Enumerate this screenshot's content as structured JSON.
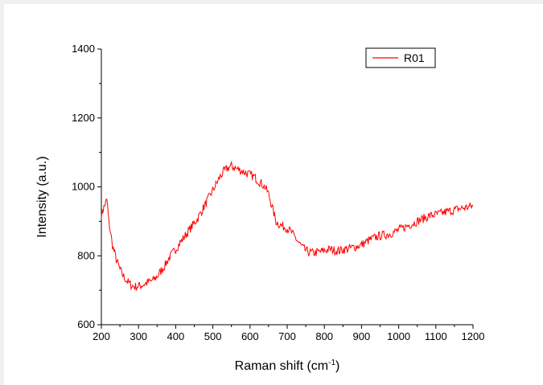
{
  "chart_data": {
    "type": "line",
    "xlabel": "Raman shift (cm",
    "xlabel_sup": "-1",
    "xlabel_close": ")",
    "ylabel": "Intensity (a.u.)",
    "xlim": [
      200,
      1200
    ],
    "ylim": [
      600,
      1400
    ],
    "x_ticks": [
      200,
      300,
      400,
      500,
      600,
      700,
      800,
      900,
      1000,
      1100,
      1200
    ],
    "y_ticks": [
      600,
      800,
      1000,
      1200,
      1400
    ],
    "grid": false,
    "legend_position": "top-right",
    "series": [
      {
        "name": "R01",
        "color": "#ff0000",
        "x": [
          200,
          205,
          210,
          215,
          220,
          230,
          240,
          250,
          260,
          270,
          280,
          290,
          300,
          310,
          320,
          330,
          340,
          350,
          360,
          370,
          380,
          390,
          400,
          410,
          420,
          430,
          440,
          450,
          460,
          470,
          480,
          490,
          500,
          510,
          520,
          530,
          540,
          550,
          560,
          570,
          580,
          590,
          600,
          610,
          620,
          630,
          640,
          650,
          660,
          670,
          680,
          690,
          700,
          710,
          720,
          730,
          740,
          750,
          760,
          770,
          780,
          790,
          800,
          810,
          820,
          830,
          840,
          850,
          860,
          870,
          880,
          890,
          900,
          910,
          920,
          930,
          940,
          950,
          960,
          970,
          980,
          990,
          1000,
          1010,
          1020,
          1030,
          1040,
          1050,
          1060,
          1070,
          1080,
          1090,
          1100,
          1110,
          1120,
          1130,
          1140,
          1150,
          1160,
          1170,
          1180,
          1190,
          1200
        ],
        "y": [
          920,
          935,
          950,
          962,
          900,
          830,
          790,
          760,
          740,
          725,
          715,
          710,
          712,
          715,
          720,
          725,
          730,
          740,
          755,
          770,
          790,
          805,
          820,
          835,
          850,
          865,
          880,
          895,
          910,
          930,
          950,
          970,
          990,
          1010,
          1030,
          1045,
          1055,
          1060,
          1055,
          1050,
          1045,
          1040,
          1035,
          1030,
          1020,
          1010,
          1000,
          980,
          940,
          900,
          890,
          885,
          880,
          870,
          855,
          840,
          825,
          815,
          810,
          808,
          810,
          812,
          815,
          818,
          818,
          815,
          815,
          818,
          820,
          822,
          825,
          828,
          832,
          838,
          845,
          850,
          855,
          858,
          860,
          862,
          865,
          870,
          875,
          880,
          885,
          890,
          895,
          900,
          905,
          910,
          915,
          918,
          920,
          922,
          925,
          928,
          930,
          933,
          936,
          938,
          940,
          942,
          945
        ]
      }
    ]
  }
}
